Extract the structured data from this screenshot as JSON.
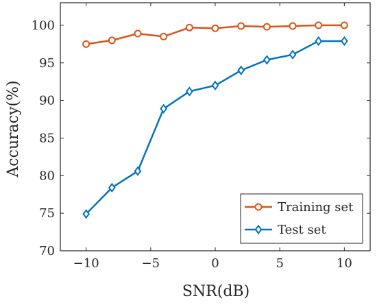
{
  "chart_data": {
    "type": "line",
    "xlabel": "SNR(dB)",
    "ylabel": "Accuracy(%)",
    "xlim": [
      -12,
      12
    ],
    "ylim": [
      70,
      103
    ],
    "xticks": [
      -10,
      -5,
      0,
      5,
      10
    ],
    "xtick_labels": [
      "−10",
      "−5",
      "0",
      "5",
      "10"
    ],
    "yticks": [
      70,
      75,
      80,
      85,
      90,
      95,
      100
    ],
    "ytick_labels": [
      "70",
      "75",
      "80",
      "85",
      "90",
      "95",
      "100"
    ],
    "x": [
      -10,
      -8,
      -6,
      -4,
      -2,
      0,
      2,
      4,
      6,
      8,
      10
    ],
    "series": [
      {
        "name": "Training set",
        "marker": "circle",
        "color": "#D95319",
        "values": [
          97.5,
          98.0,
          98.9,
          98.5,
          99.7,
          99.6,
          99.9,
          99.8,
          99.9,
          100.0,
          100.0
        ]
      },
      {
        "name": "Test set",
        "marker": "diamond",
        "color": "#0072BD",
        "values": [
          74.9,
          78.4,
          80.6,
          88.9,
          91.2,
          92.0,
          94.0,
          95.4,
          96.1,
          97.9,
          97.9
        ]
      }
    ],
    "grid": false,
    "legend_position": "bottom-right"
  }
}
